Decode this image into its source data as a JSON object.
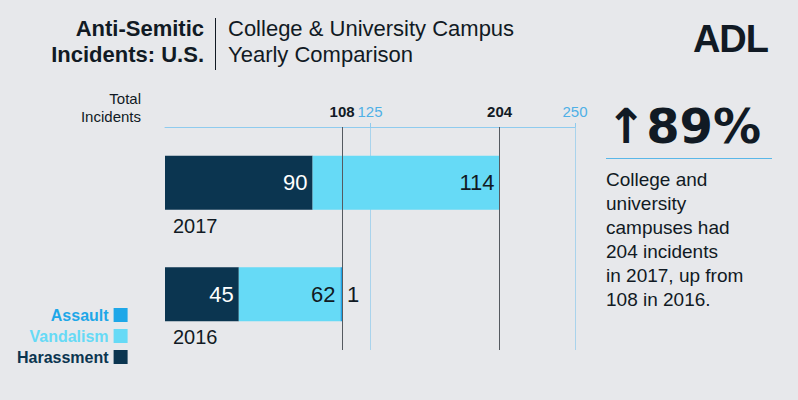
{
  "chart_data": {
    "type": "bar",
    "orientation": "horizontal",
    "stacked": true,
    "data_labels": true,
    "title": "Anti-Semitic\nIncidents: U.S.",
    "subtitle": "College & University Campus\nYearly Comparison",
    "logo": "ADL",
    "x_label": "Total\nIncidents",
    "categories": [
      "2017",
      "2016"
    ],
    "series": [
      {
        "name": "Harassment",
        "color": "#0b3550",
        "values": [
          90,
          45
        ]
      },
      {
        "name": "Vandalism",
        "color": "#66daf6",
        "values": [
          114,
          62
        ]
      },
      {
        "name": "Assault",
        "color": "#1ea7e8",
        "values": [
          null,
          1
        ]
      }
    ],
    "totals": [
      204,
      108
    ],
    "xlim": [
      0,
      250
    ],
    "xticks": [
      125,
      250
    ],
    "grid": true,
    "legend": "lower left",
    "annotations": [
      "↑89%",
      "College and\nuniversity\ncampuses had\n204 incidents\nin 2017, up from\n108 in 2016."
    ]
  }
}
